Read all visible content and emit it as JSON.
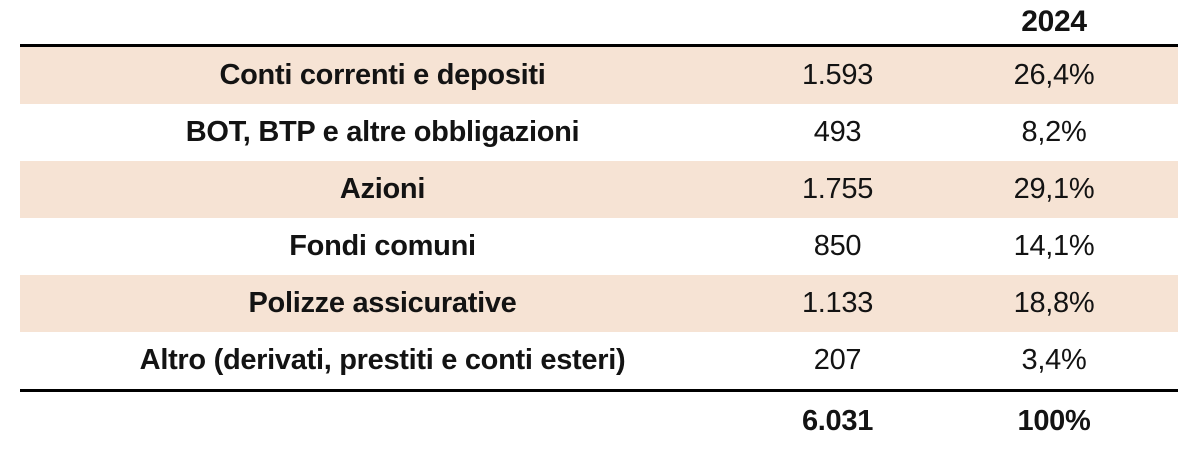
{
  "colors": {
    "row_stripe": "#f6e3d4",
    "rule": "#000000",
    "text": "#131313",
    "background": "#ffffff"
  },
  "table": {
    "year_header": "2024",
    "rows": [
      {
        "label": "Conti correnti e depositi",
        "value": "1.593",
        "pct": "26,4%"
      },
      {
        "label": "BOT, BTP e altre obbligazioni",
        "value": "493",
        "pct": "8,2%"
      },
      {
        "label": "Azioni",
        "value": "1.755",
        "pct": "29,1%"
      },
      {
        "label": "Fondi comuni",
        "value": "850",
        "pct": "14,1%"
      },
      {
        "label": "Polizze assicurative",
        "value": "1.133",
        "pct": "18,8%"
      },
      {
        "label": "Altro (derivati, prestiti e conti esteri)",
        "value": "207",
        "pct": "3,4%"
      }
    ],
    "total": {
      "value": "6.031",
      "pct": "100%"
    }
  },
  "chart_data": {
    "type": "table",
    "title": "",
    "columns": [
      "",
      "2024 valore",
      "2024 %"
    ],
    "categories": [
      "Conti correnti e depositi",
      "BOT, BTP e altre obbligazioni",
      "Azioni",
      "Fondi comuni",
      "Polizze assicurative",
      "Altro (derivati, prestiti e conti esteri)"
    ],
    "values": [
      1593,
      493,
      1755,
      850,
      1133,
      207
    ],
    "percentages": [
      26.4,
      8.2,
      29.1,
      14.1,
      18.8,
      3.4
    ],
    "total_value": 6031,
    "total_percentage": 100,
    "layout_hints": {
      "striped_rows": [
        0,
        2,
        4
      ],
      "stripe_color": "#f6e3d4",
      "header_rule": true,
      "total_rule": true
    }
  }
}
